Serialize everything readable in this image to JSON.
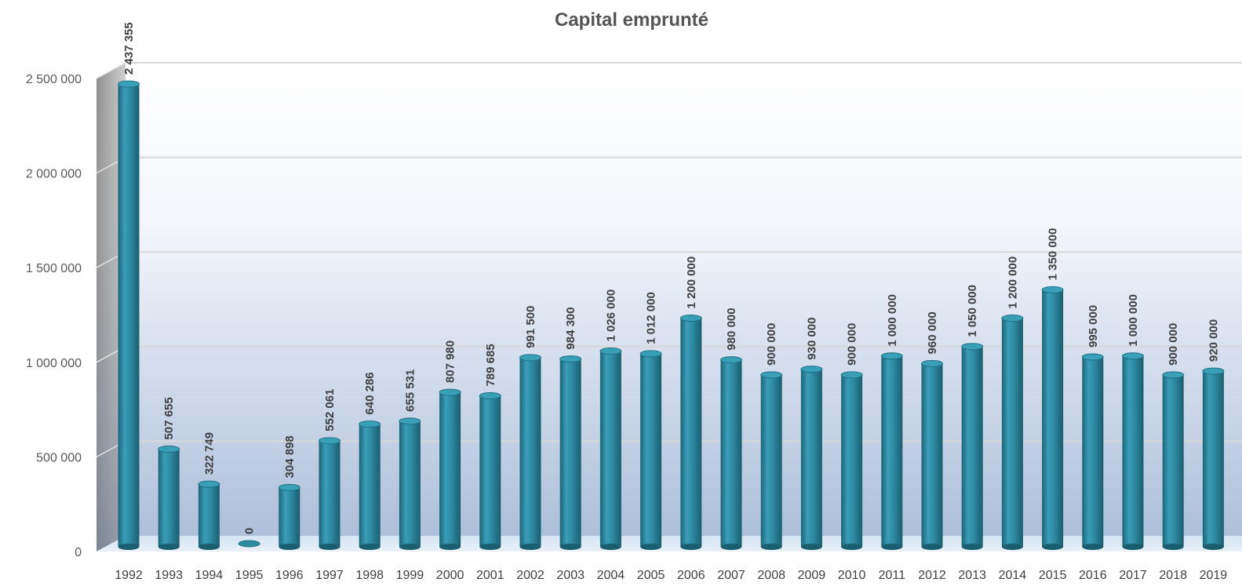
{
  "chart_data": {
    "type": "bar",
    "title": "Capital emprunté",
    "xlabel": "",
    "ylabel": "",
    "ylim": [
      0,
      2500000
    ],
    "yticks": [
      0,
      500000,
      1000000,
      1500000,
      2000000,
      2500000
    ],
    "ytick_labels": [
      "0",
      "500 000",
      "1 000 000",
      "1 500 000",
      "2 000 000",
      "2 500 000"
    ],
    "grid": true,
    "legend": "none",
    "bar_color": "#2E8BA3",
    "categories": [
      "1992",
      "1993",
      "1994",
      "1995",
      "1996",
      "1997",
      "1998",
      "1999",
      "2000",
      "2001",
      "2002",
      "2003",
      "2004",
      "2005",
      "2006",
      "2007",
      "2008",
      "2009",
      "2010",
      "2011",
      "2012",
      "2013",
      "2014",
      "2015",
      "2016",
      "2017",
      "2018",
      "2019"
    ],
    "values": [
      2437355,
      507655,
      322749,
      0,
      304898,
      552061,
      640286,
      655531,
      807980,
      789685,
      991500,
      984300,
      1026000,
      1012000,
      1200000,
      980000,
      900000,
      930000,
      900000,
      1000000,
      960000,
      1050000,
      1200000,
      1350000,
      995000,
      1000000,
      900000,
      920000
    ],
    "data_labels": [
      "2 437 355",
      "507 655",
      "322 749",
      "0",
      "304 898",
      "552 061",
      "640 286",
      "655 531",
      "807 980",
      "789 685",
      "991 500",
      "984 300",
      "1 026 000",
      "1 012 000",
      "1 200 000",
      "980 000",
      "900 000",
      "930 000",
      "900 000",
      "1 000 000",
      "960 000",
      "1 050 000",
      "1 200 000",
      "1 350 000",
      "995 000",
      "1 000 000",
      "900 000",
      "920 000"
    ]
  }
}
